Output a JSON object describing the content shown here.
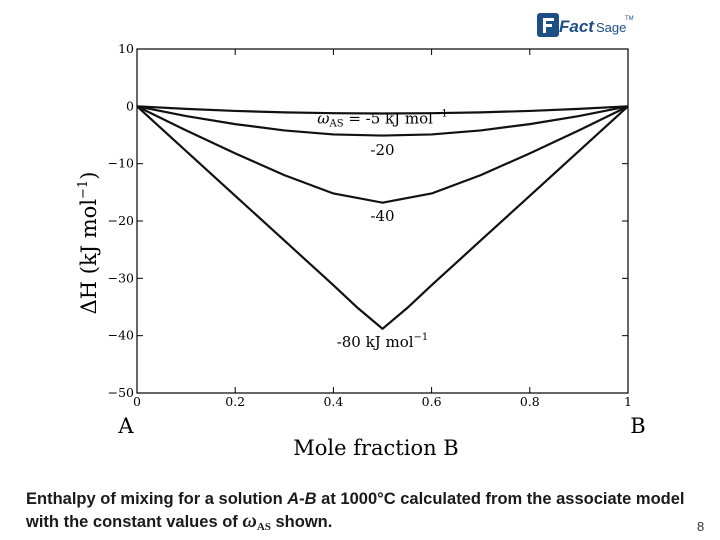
{
  "logo": {
    "text_a": "Fact",
    "text_b": "Sage",
    "tm": "TM",
    "color": "#1d4f86"
  },
  "chart_data": {
    "type": "line",
    "ylabel": "ΔH (kJ mol",
    "ylabel_sup": "−1",
    "xlabel": "Mole fraction B",
    "left_end_label": "A",
    "right_end_label": "B",
    "xlim": [
      0,
      1
    ],
    "ylim": [
      -50,
      10
    ],
    "xticks": [
      0,
      0.2,
      0.4,
      0.6,
      0.8,
      1
    ],
    "xtick_labels": [
      "0",
      "0.2",
      "0.4",
      "0.6",
      "0.8",
      "1"
    ],
    "yticks": [
      10,
      0,
      -10,
      -20,
      -30,
      -40,
      -50
    ],
    "ytick_labels": [
      "10",
      "0",
      "−10",
      "−20",
      "−30",
      "−40",
      "−50"
    ],
    "grid": false,
    "series": [
      {
        "name": "-5",
        "x": [
          0,
          0.1,
          0.2,
          0.3,
          0.4,
          0.5,
          0.6,
          0.7,
          0.8,
          0.9,
          1
        ],
        "y": [
          0,
          -0.45,
          -0.8,
          -1.05,
          -1.2,
          -1.25,
          -1.2,
          -1.05,
          -0.8,
          -0.45,
          0
        ]
      },
      {
        "name": "-20",
        "x": [
          0,
          0.1,
          0.2,
          0.3,
          0.4,
          0.5,
          0.6,
          0.7,
          0.8,
          0.9,
          1
        ],
        "y": [
          0,
          -1.7,
          -3.1,
          -4.2,
          -4.9,
          -5.1,
          -4.9,
          -4.2,
          -3.1,
          -1.7,
          0
        ]
      },
      {
        "name": "-40",
        "x": [
          0,
          0.1,
          0.2,
          0.3,
          0.4,
          0.5,
          0.6,
          0.7,
          0.8,
          0.9,
          1
        ],
        "y": [
          0,
          -4.2,
          -8.2,
          -12.0,
          -15.2,
          -16.8,
          -15.2,
          -12.0,
          -8.2,
          -4.2,
          0
        ]
      },
      {
        "name": "-80",
        "x": [
          0,
          0.1,
          0.2,
          0.3,
          0.4,
          0.45,
          0.5,
          0.55,
          0.6,
          0.7,
          0.8,
          0.9,
          1
        ],
        "y": [
          0,
          -7.8,
          -15.6,
          -23.4,
          -31.2,
          -35.2,
          -38.8,
          -35.2,
          -31.2,
          -23.4,
          -15.6,
          -7.8,
          0
        ]
      }
    ],
    "annotations": [
      {
        "id": "w5",
        "text": "-5 kJ mol",
        "prefix": "ω",
        "prefix_sub": "AS",
        "prefix_eq": " = ",
        "sup": "−1",
        "x": 0.5,
        "y": -3.0
      },
      {
        "id": "w20",
        "text": "-20",
        "x": 0.5,
        "y": -8.5
      },
      {
        "id": "w40",
        "text": "-40",
        "x": 0.5,
        "y": -20.0
      },
      {
        "id": "w80",
        "text": "-80 kJ mol",
        "sup": "−1",
        "x": 0.5,
        "y": -42.0
      }
    ]
  },
  "caption": {
    "p1": "Enthalpy of mixing for a solution ",
    "p2": "A-B",
    "p3": " at 1000°C calculated from the associate model with the constant values of ",
    "omega": "ω",
    "sub": "AS",
    "p4": " shown."
  },
  "page_number": "8"
}
